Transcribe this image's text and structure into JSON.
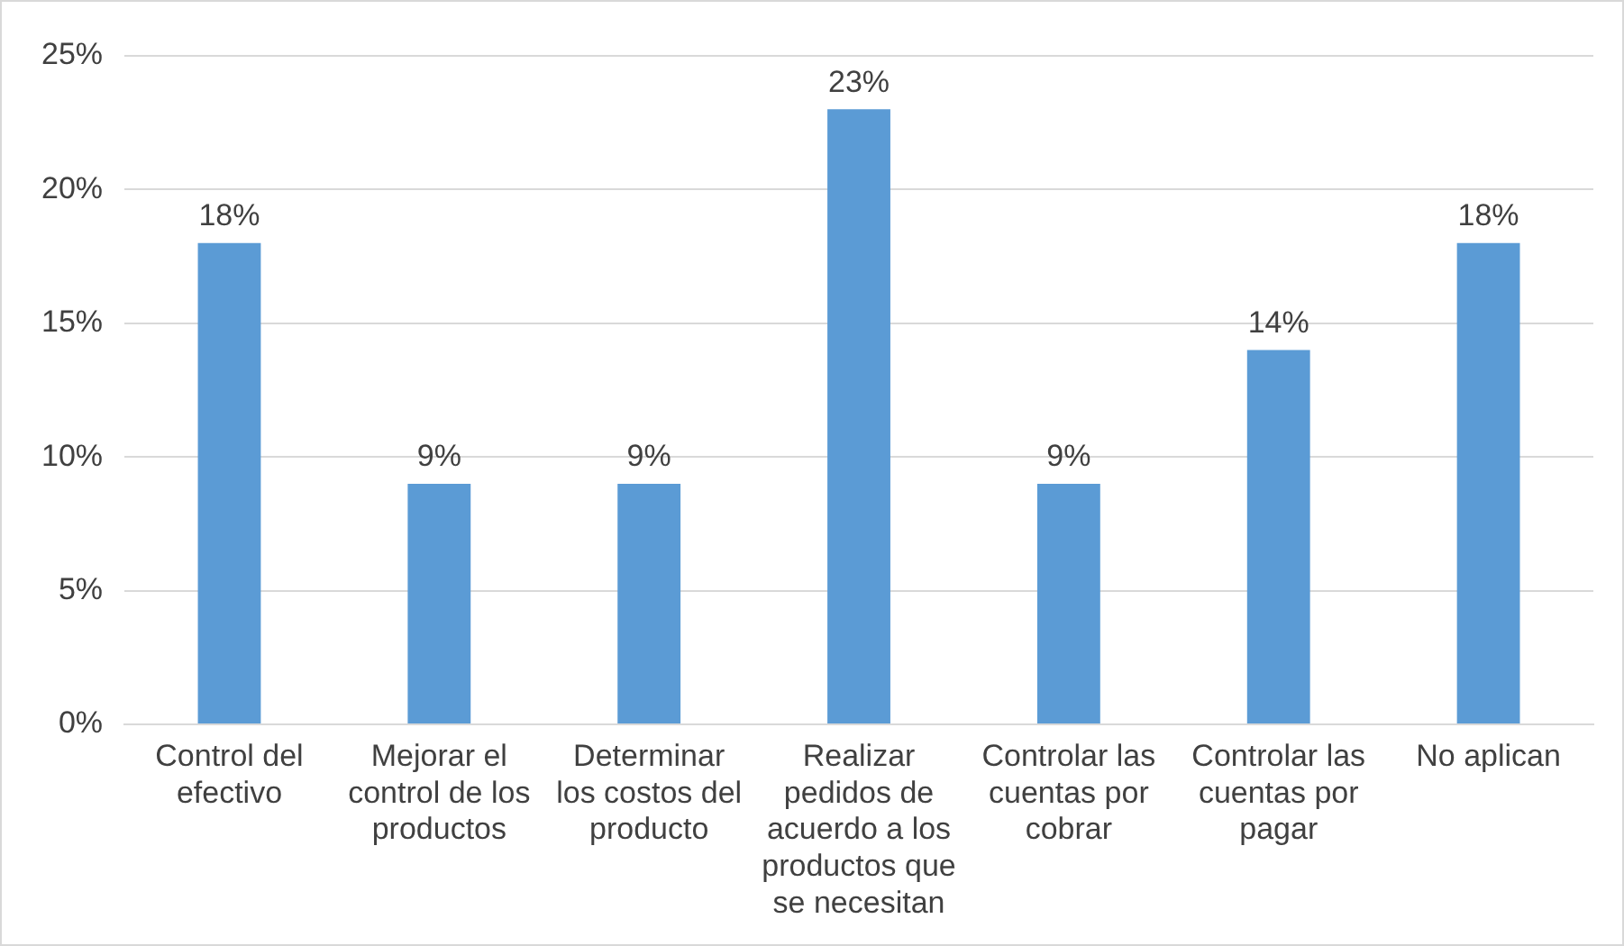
{
  "chart_data": {
    "type": "bar",
    "categories": [
      "Control del efectivo",
      "Mejorar el control de los productos",
      "Determinar los costos del producto",
      "Realizar pedidos de acuerdo a los productos que se necesitan",
      "Controlar las cuentas por cobrar",
      "Controlar las cuentas por pagar",
      "No aplican"
    ],
    "values": [
      18,
      9,
      9,
      23,
      9,
      14,
      18
    ],
    "value_labels": [
      "18%",
      "9%",
      "9%",
      "23%",
      "9%",
      "14%",
      "18%"
    ],
    "color": "#5b9bd5",
    "ylim": [
      0,
      25
    ],
    "yticks": [
      {
        "value": 0,
        "label": "0%"
      },
      {
        "value": 5,
        "label": "5%"
      },
      {
        "value": 10,
        "label": "10%"
      },
      {
        "value": 15,
        "label": "15%"
      },
      {
        "value": 20,
        "label": "20%"
      },
      {
        "value": 25,
        "label": "25%"
      }
    ],
    "grid": "y"
  }
}
